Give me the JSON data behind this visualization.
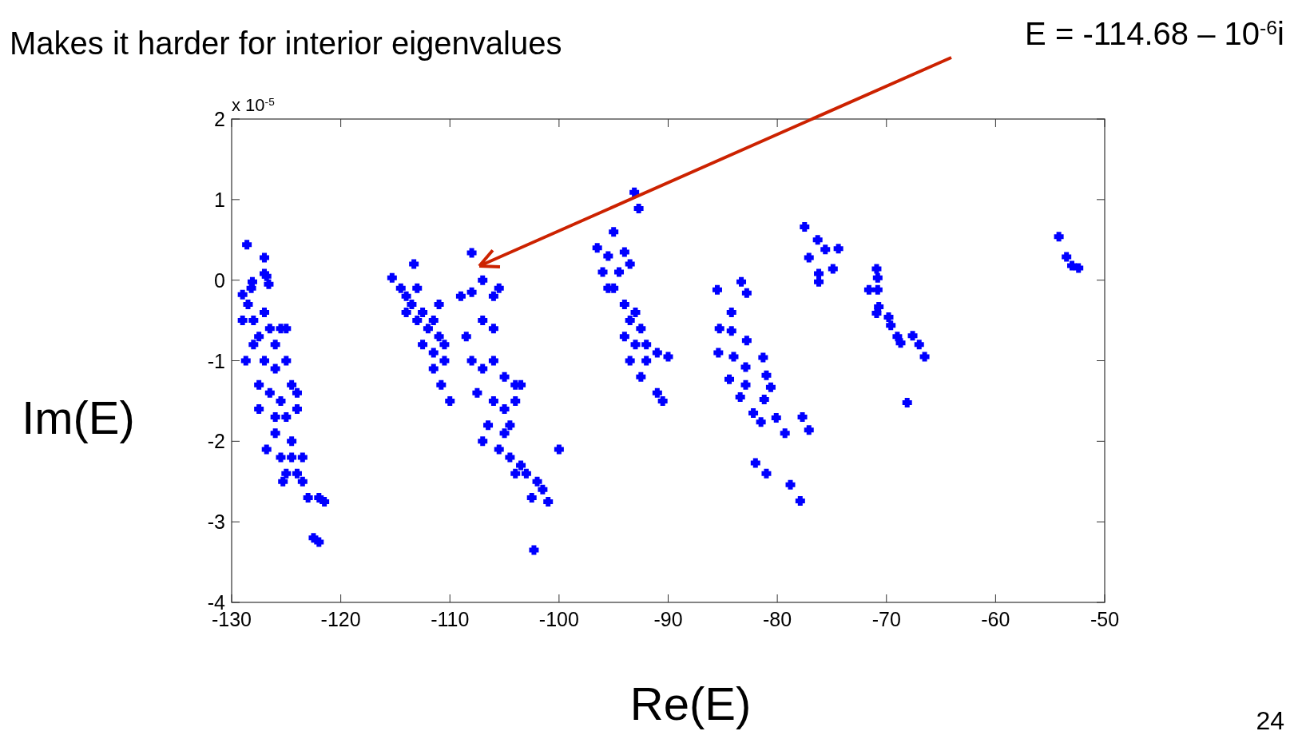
{
  "chart_data": {
    "type": "scatter",
    "title": "Makes it harder for interior eigenvalues",
    "xlabel": "Re(E)",
    "ylabel": "Im(E)",
    "xlim": [
      -130,
      -50
    ],
    "xticks": [
      -130,
      -120,
      -110,
      -100,
      -90,
      -80,
      -70,
      -60,
      -50
    ],
    "ylim": [
      -4,
      2
    ],
    "yticks": [
      -4,
      -3,
      -2,
      -1,
      0,
      1,
      2
    ],
    "grid": false,
    "marker": "cross",
    "annotations": [
      "E = -114.68 – 10$^{-6}$i",
      "x 10$^{-5}$",
      "24"
    ],
    "series": [
      {
        "color": "#0000ff",
        "x": [
          -128.6,
          -127,
          -129,
          -128.1,
          -127,
          -128.5,
          -128,
          -127.5,
          -128,
          -127,
          -126.5,
          -126,
          -125.5,
          -125,
          -127,
          -126,
          -125,
          -124.5,
          -127.5,
          -126.5,
          -125.5,
          -124,
          -127.5,
          -126,
          -125,
          -124,
          -126,
          -124.5,
          -126.8,
          -125.5,
          -124.5,
          -123.5,
          -125,
          -124,
          -125.3,
          -123.5,
          -123,
          -122,
          -121.5,
          -122.5,
          -122,
          -128.2,
          -129,
          -128.7,
          -126.6,
          -126.8,
          -115.3,
          -113.3,
          -114.5,
          -114,
          -113.5,
          -113,
          -112.5,
          -114,
          -113,
          -112,
          -111.5,
          -111,
          -112.5,
          -111.5,
          -110.5,
          -110.5,
          -111.5,
          -110.8,
          -110,
          -111,
          -108,
          -109,
          -108,
          -107,
          -106,
          -105.5,
          -108.5,
          -107,
          -106,
          -108,
          -107,
          -106,
          -105,
          -104,
          -107.5,
          -106,
          -105,
          -104,
          -103.5,
          -106.5,
          -105,
          -104.5,
          -107,
          -105.5,
          -104.5,
          -103.5,
          -104,
          -103,
          -102,
          -101.5,
          -101,
          -102.5,
          -100,
          -102.3,
          -93.1,
          -92.7,
          -95,
          -96.5,
          -95.5,
          -94,
          -96,
          -94.5,
          -93.5,
          -95,
          -94,
          -93.5,
          -93,
          -94,
          -93,
          -92.5,
          -92,
          -93.5,
          -92,
          -91,
          -90,
          -92.5,
          -91,
          -90.5,
          -95.5,
          -85.5,
          -83.3,
          -82.8,
          -84.2,
          -85.3,
          -84.2,
          -82.8,
          -85.4,
          -84,
          -82.9,
          -81.3,
          -81,
          -84.4,
          -82.9,
          -80.6,
          -83.4,
          -81.2,
          -82.2,
          -81.5,
          -80.1,
          -79.3,
          -77.7,
          -77.1,
          -82,
          -81,
          -78.8,
          -77.9,
          -77.5,
          -76.3,
          -75.6,
          -74.4,
          -77.1,
          -74.9,
          -76.2,
          -76.2,
          -70.9,
          -70.8,
          -71.6,
          -70.8,
          -70.7,
          -70.9,
          -69.8,
          -69.6,
          -69,
          -68.7,
          -67.6,
          -67,
          -66.5,
          -68.1,
          -54.2,
          -53.5,
          -53,
          -52.4
        ],
        "values": [
          0.44,
          0.28,
          -0.18,
          -0.02,
          0.08,
          -0.3,
          -0.5,
          -0.7,
          -0.8,
          -0.4,
          -0.6,
          -0.8,
          -0.6,
          -0.6,
          -1,
          -1.1,
          -1,
          -1.3,
          -1.3,
          -1.4,
          -1.5,
          -1.4,
          -1.6,
          -1.7,
          -1.7,
          -1.6,
          -1.9,
          -2,
          -2.1,
          -2.2,
          -2.2,
          -2.2,
          -2.4,
          -2.4,
          -2.5,
          -2.5,
          -2.7,
          -2.7,
          -2.75,
          -3.2,
          -3.25,
          -0.1,
          -0.5,
          -1,
          -0.05,
          0.05,
          0.03,
          0.2,
          -0.1,
          -0.2,
          -0.3,
          -0.1,
          -0.4,
          -0.4,
          -0.5,
          -0.6,
          -0.5,
          -0.7,
          -0.8,
          -0.9,
          -0.8,
          -1,
          -1.1,
          -1.3,
          -1.5,
          -0.3,
          0.34,
          -0.2,
          -0.15,
          0,
          -0.2,
          -0.1,
          -0.7,
          -0.5,
          -0.6,
          -1,
          -1.1,
          -1,
          -1.2,
          -1.3,
          -1.4,
          -1.5,
          -1.6,
          -1.5,
          -1.3,
          -1.8,
          -1.9,
          -1.8,
          -2,
          -2.1,
          -2.2,
          -2.3,
          -2.4,
          -2.4,
          -2.5,
          -2.6,
          -2.75,
          -2.7,
          -2.1,
          -3.35,
          1.09,
          0.89,
          0.6,
          0.4,
          0.3,
          0.35,
          0.1,
          0.1,
          0.2,
          -0.1,
          -0.3,
          -0.5,
          -0.4,
          -0.7,
          -0.8,
          -0.6,
          -0.8,
          -1,
          -1,
          -0.9,
          -0.95,
          -1.2,
          -1.4,
          -1.5,
          -0.1,
          -0.12,
          -0.02,
          -0.16,
          -0.4,
          -0.6,
          -0.63,
          -0.75,
          -0.9,
          -0.95,
          -1.08,
          -0.96,
          -1.18,
          -1.23,
          -1.3,
          -1.33,
          -1.45,
          -1.48,
          -1.65,
          -1.76,
          -1.71,
          -1.9,
          -1.7,
          -1.86,
          -2.27,
          -2.4,
          -2.54,
          -2.74,
          0.66,
          0.5,
          0.38,
          0.39,
          0.28,
          0.14,
          0.08,
          -0.02,
          0.14,
          0.03,
          -0.12,
          -0.12,
          -0.33,
          -0.41,
          -0.46,
          -0.56,
          -0.7,
          -0.78,
          -0.69,
          -0.8,
          -0.95,
          -1.52,
          0.54,
          0.29,
          0.18,
          0.15
        ]
      }
    ]
  }
}
